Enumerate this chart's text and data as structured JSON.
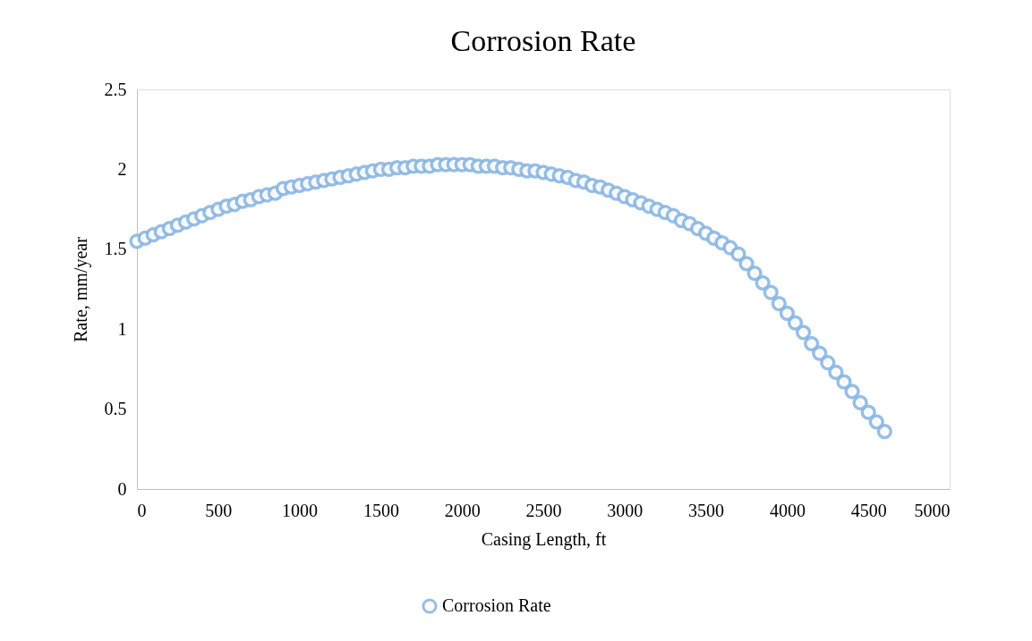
{
  "chart_data": {
    "type": "line",
    "title": "Corrosion Rate",
    "xlabel": "Casing Length, ft",
    "ylabel": "Rate, mm/year",
    "x": [
      0,
      50,
      100,
      150,
      200,
      250,
      300,
      350,
      400,
      450,
      500,
      550,
      600,
      650,
      700,
      750,
      800,
      850,
      900,
      950,
      1000,
      1050,
      1100,
      1150,
      1200,
      1250,
      1300,
      1350,
      1400,
      1450,
      1500,
      1550,
      1600,
      1650,
      1700,
      1750,
      1800,
      1850,
      1900,
      1950,
      2000,
      2050,
      2100,
      2150,
      2200,
      2250,
      2300,
      2350,
      2400,
      2450,
      2500,
      2550,
      2600,
      2650,
      2700,
      2750,
      2800,
      2850,
      2900,
      2950,
      3000,
      3050,
      3100,
      3150,
      3200,
      3250,
      3300,
      3350,
      3400,
      3450,
      3500,
      3550,
      3600,
      3650,
      3700,
      3750,
      3800,
      3850,
      3900,
      3950,
      4000,
      4050,
      4100,
      4150,
      4200,
      4250,
      4300,
      4350,
      4400,
      4450,
      4500,
      4550,
      4600
    ],
    "series": [
      {
        "name": "Corrosion Rate",
        "color": "#8cb8e4",
        "values": [
          1.55,
          1.57,
          1.59,
          1.61,
          1.63,
          1.65,
          1.67,
          1.69,
          1.71,
          1.73,
          1.75,
          1.77,
          1.78,
          1.8,
          1.81,
          1.83,
          1.84,
          1.85,
          1.88,
          1.89,
          1.9,
          1.91,
          1.92,
          1.93,
          1.94,
          1.95,
          1.96,
          1.97,
          1.98,
          1.99,
          2.0,
          2.0,
          2.01,
          2.01,
          2.02,
          2.02,
          2.02,
          2.03,
          2.03,
          2.03,
          2.03,
          2.03,
          2.02,
          2.02,
          2.02,
          2.01,
          2.01,
          2.0,
          1.99,
          1.99,
          1.98,
          1.97,
          1.96,
          1.95,
          1.93,
          1.92,
          1.9,
          1.89,
          1.87,
          1.85,
          1.83,
          1.81,
          1.79,
          1.77,
          1.75,
          1.73,
          1.71,
          1.68,
          1.66,
          1.63,
          1.6,
          1.57,
          1.54,
          1.51,
          1.47,
          1.41,
          1.35,
          1.29,
          1.23,
          1.16,
          1.1,
          1.04,
          0.98,
          0.91,
          0.85,
          0.79,
          0.73,
          0.67,
          0.61,
          0.54,
          0.48,
          0.42,
          0.36
        ]
      }
    ],
    "xlim": [
      0,
      5000
    ],
    "xticks": [
      0,
      500,
      1000,
      1500,
      2000,
      2500,
      3000,
      3500,
      4000,
      4500,
      5000
    ],
    "ylim": [
      0,
      2.5
    ],
    "yticks": [
      0,
      0.5,
      1,
      1.5,
      2,
      2.5
    ],
    "grid": false,
    "legend": "bottom",
    "marker": "circle"
  }
}
